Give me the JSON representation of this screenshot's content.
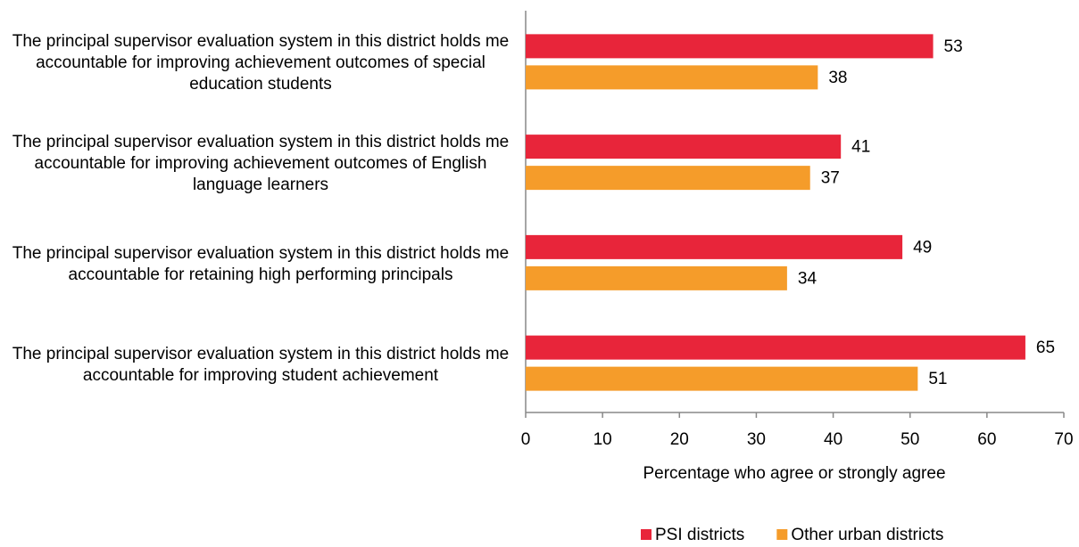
{
  "chart_data": {
    "type": "hbar",
    "categories": [
      "The principal supervisor evaluation system in this district holds me accountable for improving achievement outcomes of special education students",
      "The principal supervisor evaluation system in this district holds me accountable for improving achievement outcomes of English language learners",
      "The principal supervisor evaluation system in this district holds me accountable for retaining high performing principals",
      "The principal supervisor evaluation system in this district holds me accountable for improving student achievement"
    ],
    "series": [
      {
        "name": "PSI districts",
        "color": "#e8253a",
        "values": [
          53,
          41,
          49,
          65
        ]
      },
      {
        "name": "Other urban districts",
        "color": "#f59c2a",
        "values": [
          38,
          37,
          34,
          51
        ]
      }
    ],
    "x_label": "Percentage who agree or strongly agree",
    "xlim": [
      0,
      70
    ],
    "xticks": [
      0,
      10,
      20,
      30,
      40,
      50,
      60,
      70
    ],
    "legend": "bottom"
  }
}
